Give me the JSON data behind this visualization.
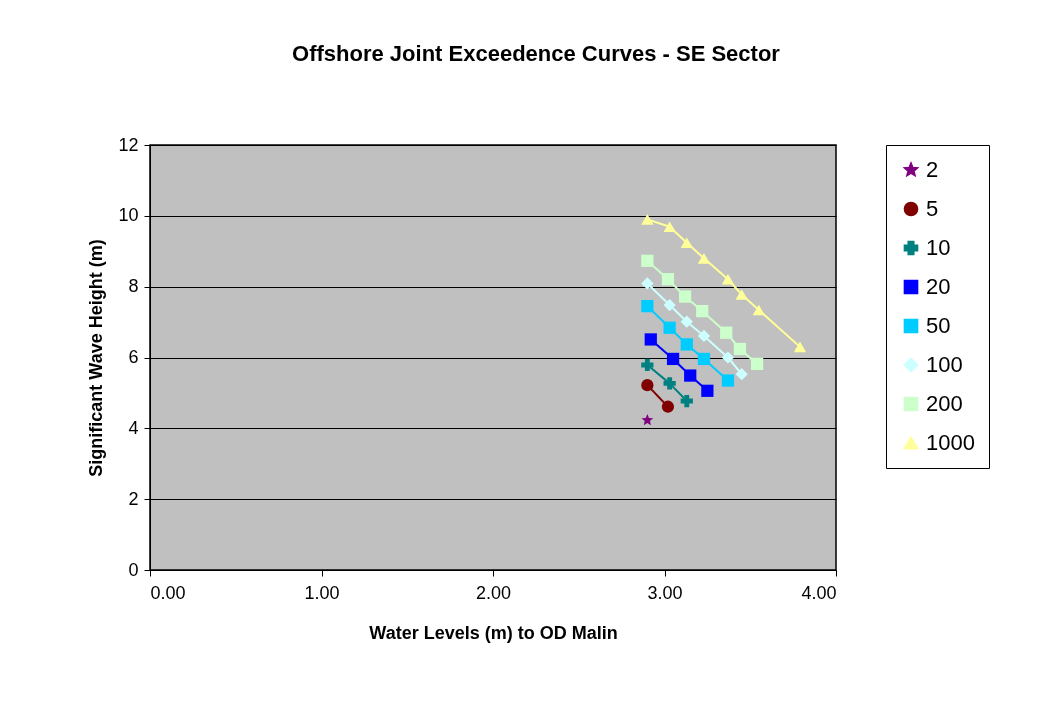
{
  "chart_data": {
    "type": "line",
    "title": "Offshore Joint Exceedence Curves - SE Sector",
    "xlabel": "Water Levels (m) to OD Malin",
    "ylabel": "Significant Wave Height (m)",
    "xlim": [
      0,
      4
    ],
    "xticks": [
      {
        "value": 0,
        "label": "0.00"
      },
      {
        "value": 1,
        "label": "1.00"
      },
      {
        "value": 2,
        "label": "2.00"
      },
      {
        "value": 3,
        "label": "3.00"
      },
      {
        "value": 4,
        "label": "4.00"
      }
    ],
    "ylim": [
      0,
      12
    ],
    "yticks": [
      0,
      2,
      4,
      6,
      8,
      10,
      12
    ],
    "grid": "y",
    "legend": "right",
    "line_style": "solid",
    "series": [
      {
        "name": "2",
        "color": "#800080",
        "marker": "star",
        "x": [
          2.9
        ],
        "values": [
          4.23
        ]
      },
      {
        "name": "5",
        "color": "#800000",
        "marker": "circle",
        "x": [
          2.9,
          3.02
        ],
        "values": [
          5.22,
          4.61
        ]
      },
      {
        "name": "10",
        "color": "#008080",
        "marker": "cross",
        "x": [
          2.9,
          3.03,
          3.13
        ],
        "values": [
          5.79,
          5.27,
          4.77
        ]
      },
      {
        "name": "20",
        "color": "#0000ff",
        "marker": "square",
        "x": [
          2.92,
          3.05,
          3.15,
          3.25
        ],
        "values": [
          6.51,
          5.96,
          5.49,
          5.06
        ]
      },
      {
        "name": "50",
        "color": "#00ccff",
        "marker": "square",
        "x": [
          2.9,
          3.03,
          3.13,
          3.23,
          3.37
        ],
        "values": [
          7.45,
          6.84,
          6.37,
          5.96,
          5.35
        ]
      },
      {
        "name": "100",
        "color": "#ccffff",
        "marker": "diamond",
        "x": [
          2.9,
          3.03,
          3.13,
          3.23,
          3.37,
          3.45
        ],
        "values": [
          8.09,
          7.48,
          7.01,
          6.61,
          6.0,
          5.53
        ]
      },
      {
        "name": "200",
        "color": "#ccffcc",
        "marker": "square",
        "x": [
          2.9,
          3.02,
          3.12,
          3.22,
          3.36,
          3.44,
          3.54
        ],
        "values": [
          8.73,
          8.21,
          7.72,
          7.31,
          6.7,
          6.24,
          5.82
        ]
      },
      {
        "name": "1000",
        "color": "#ffff99",
        "marker": "triangle",
        "x": [
          2.9,
          3.03,
          3.13,
          3.23,
          3.37,
          3.45,
          3.55,
          3.79
        ],
        "values": [
          9.9,
          9.69,
          9.24,
          8.8,
          8.21,
          7.78,
          7.34,
          6.3
        ]
      }
    ]
  }
}
